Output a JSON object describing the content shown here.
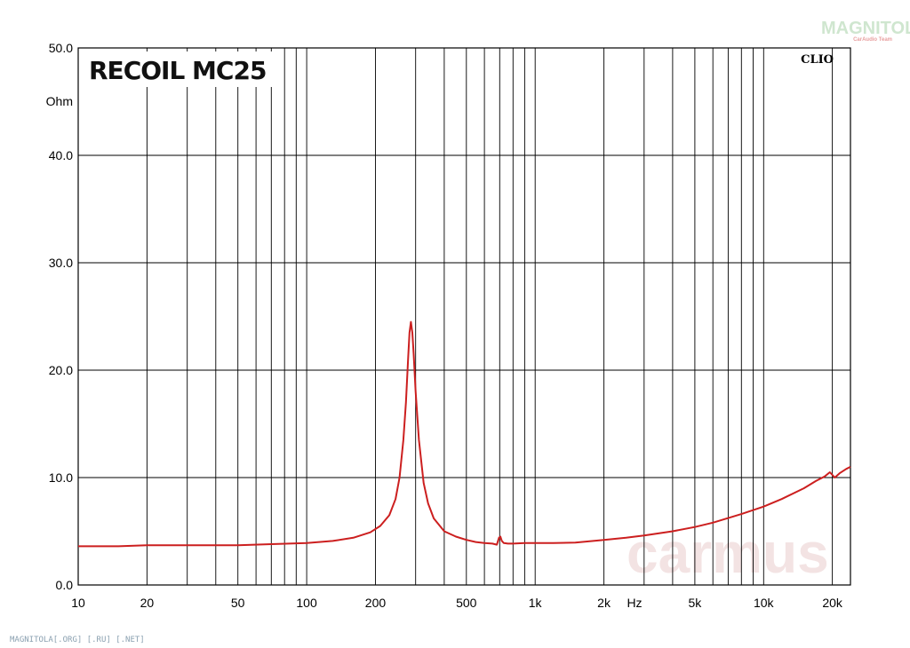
{
  "chart_data": {
    "type": "line",
    "title": "RECOIL MC25",
    "brand": "CLIO",
    "ylabel": "Ohm",
    "x_unit_label": "Hz",
    "x_scale": "log",
    "xlim": [
      10,
      24000
    ],
    "ylim": [
      0,
      50
    ],
    "grid": true,
    "y_ticks": [
      {
        "value": 0,
        "label": "0.0"
      },
      {
        "value": 10,
        "label": "10.0"
      },
      {
        "value": 20,
        "label": "20.0"
      },
      {
        "value": 30,
        "label": "30.0"
      },
      {
        "value": 40,
        "label": "40.0"
      },
      {
        "value": 50,
        "label": "50.0"
      }
    ],
    "x_ticks": [
      {
        "value": 10,
        "label": "10"
      },
      {
        "value": 20,
        "label": "20"
      },
      {
        "value": 50,
        "label": "50"
      },
      {
        "value": 100,
        "label": "100"
      },
      {
        "value": 200,
        "label": "200"
      },
      {
        "value": 500,
        "label": "500"
      },
      {
        "value": 1000,
        "label": "1k"
      },
      {
        "value": 2000,
        "label": "2k"
      },
      {
        "value": 5000,
        "label": "5k"
      },
      {
        "value": 10000,
        "label": "10k"
      },
      {
        "value": 20000,
        "label": "20k"
      }
    ],
    "x_gridlines": [
      20,
      30,
      40,
      50,
      60,
      70,
      80,
      90,
      100,
      200,
      300,
      400,
      500,
      600,
      700,
      800,
      900,
      1000,
      2000,
      3000,
      4000,
      5000,
      6000,
      7000,
      8000,
      9000,
      10000,
      20000
    ],
    "series": [
      {
        "color": "#cc1f1f",
        "x": [
          10,
          15,
          20,
          30,
          50,
          70,
          100,
          130,
          160,
          190,
          210,
          230,
          245,
          255,
          265,
          272,
          278,
          282,
          286,
          290,
          294,
          300,
          310,
          325,
          340,
          360,
          400,
          450,
          500,
          550,
          600,
          650,
          680,
          695,
          705,
          715,
          730,
          760,
          800,
          900,
          1000,
          1200,
          1500,
          2000,
          2500,
          3000,
          4000,
          5000,
          6000,
          8000,
          10000,
          12000,
          15000,
          17000,
          18500,
          19500,
          20500,
          21500,
          23000,
          24000
        ],
        "y": [
          3.6,
          3.6,
          3.7,
          3.7,
          3.7,
          3.8,
          3.9,
          4.1,
          4.4,
          4.9,
          5.5,
          6.5,
          8.0,
          10.0,
          13.5,
          17.0,
          21.0,
          23.5,
          24.5,
          23.5,
          21.5,
          18.0,
          13.5,
          9.5,
          7.6,
          6.2,
          5.0,
          4.5,
          4.2,
          4.0,
          3.9,
          3.85,
          3.75,
          4.4,
          4.5,
          4.1,
          3.9,
          3.85,
          3.85,
          3.9,
          3.9,
          3.9,
          3.95,
          4.2,
          4.4,
          4.6,
          5.0,
          5.4,
          5.8,
          6.6,
          7.3,
          8.0,
          9.0,
          9.7,
          10.1,
          10.5,
          10.0,
          10.4,
          10.8,
          11.0
        ]
      }
    ]
  },
  "watermark": {
    "top_logo_text": "MAGNITOLA",
    "top_logo_sub": "CarAudio Team",
    "center_text": "carmus",
    "footer_text": "MAGNITOLA[.ORG] [.RU] [.NET]"
  }
}
